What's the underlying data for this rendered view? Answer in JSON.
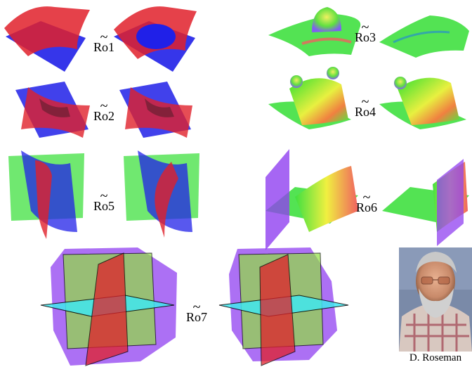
{
  "moves": [
    {
      "tilde": "~",
      "name": "Ro1"
    },
    {
      "tilde": "~",
      "name": "Ro2"
    },
    {
      "tilde": "~",
      "name": "Ro3"
    },
    {
      "tilde": "~",
      "name": "Ro4"
    },
    {
      "tilde": "~",
      "name": "Ro5"
    },
    {
      "tilde": "~",
      "name": "Ro6"
    },
    {
      "tilde": "~",
      "name": "Ro7"
    }
  ],
  "portrait": {
    "caption": "D. Roseman"
  },
  "colors": {
    "red": "#e0202a",
    "blue": "#2020e8",
    "green": "#40f040",
    "yellow": "#f0f040",
    "purple": "#9040f0",
    "cyan": "#40e8f0",
    "olive": "#90e040"
  }
}
